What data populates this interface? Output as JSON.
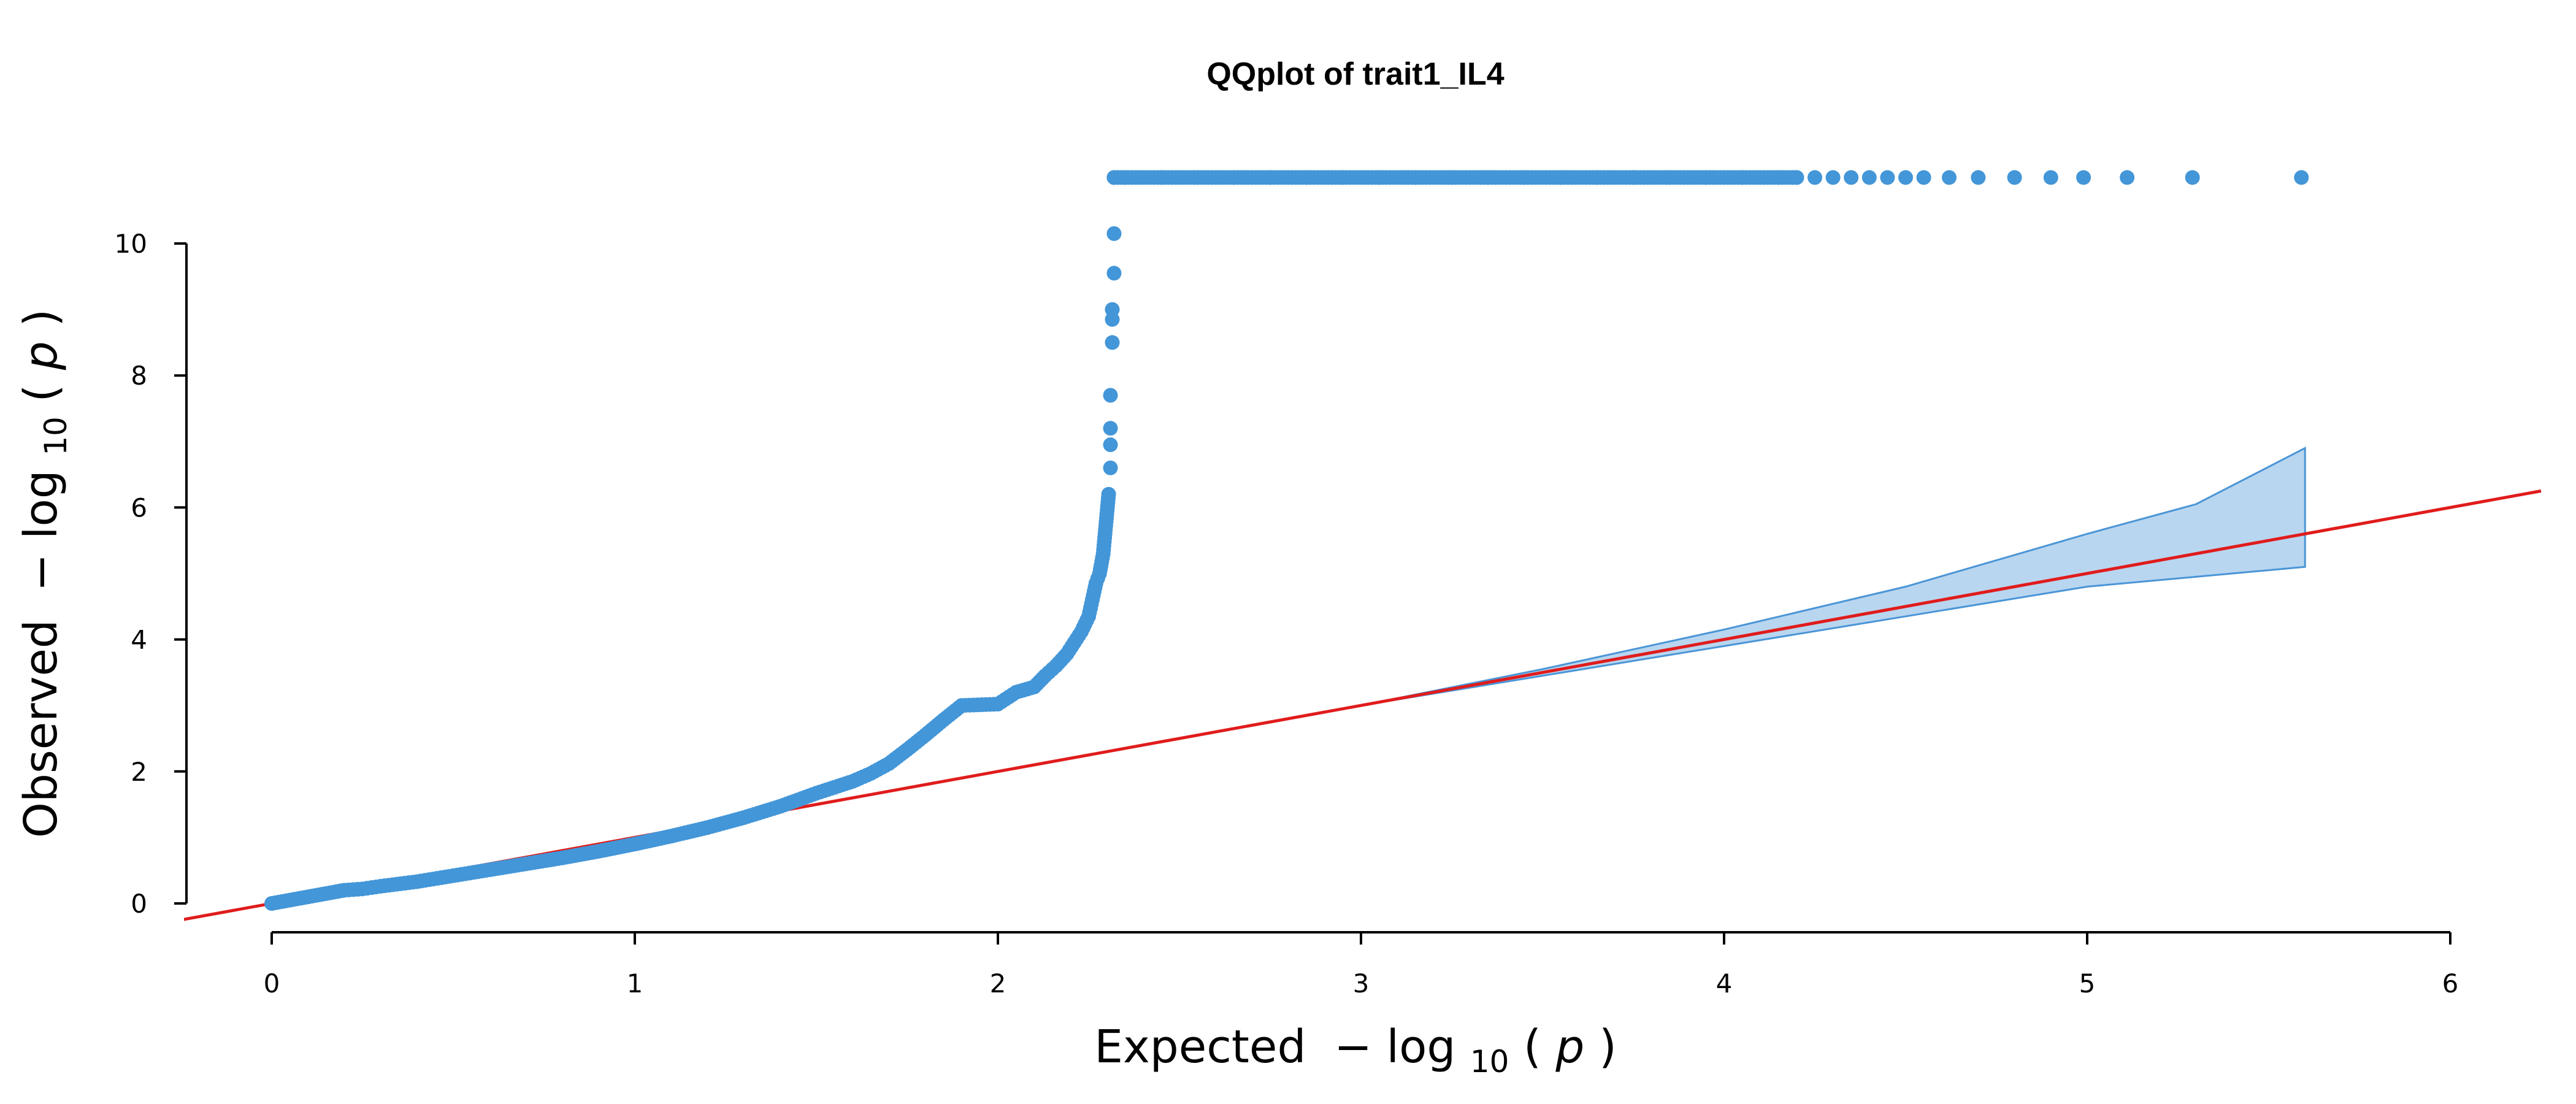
{
  "chart_data": {
    "type": "scatter",
    "title": "QQplot of trait1_IL4",
    "xlabel": {
      "prefix": "Expected",
      "fn": "log",
      "sub": "10",
      "arg": "p"
    },
    "ylabel": {
      "prefix": "Observed",
      "fn": "log",
      "sub": "10",
      "arg": "p"
    },
    "xlim": [
      0,
      6
    ],
    "ylim": [
      0,
      10
    ],
    "xticks": [
      "0",
      "1",
      "2",
      "3",
      "4",
      "5",
      "6"
    ],
    "yticks": [
      "0",
      "2",
      "4",
      "6",
      "8",
      "10"
    ],
    "grid": false,
    "colors": {
      "points": "#4396d8",
      "reference_line": "#e01c1c",
      "band_fill": "#b9d6f0",
      "band_edge": "#4a95d6"
    },
    "reference_line": {
      "slope": 1,
      "intercept": 0
    },
    "confidence_band": {
      "x": [
        1.5,
        2.0,
        2.5,
        3.0,
        3.5,
        4.0,
        4.5,
        5.0,
        5.3,
        5.6
      ],
      "upper": [
        1.5,
        2.0,
        2.5,
        3.0,
        3.55,
        4.15,
        4.8,
        5.6,
        6.05,
        6.9
      ],
      "lower": [
        1.5,
        2.0,
        2.5,
        3.0,
        3.45,
        3.9,
        4.35,
        4.8,
        4.95,
        5.1
      ]
    },
    "series": [
      {
        "x": [
          0,
          0.05,
          0.1,
          0.15,
          0.2,
          0.25,
          0.3,
          0.4,
          0.5,
          0.6,
          0.7,
          0.8,
          0.9,
          1.0,
          1.1,
          1.2,
          1.3,
          1.4,
          1.5,
          1.6,
          1.65,
          1.7,
          1.75,
          1.8,
          1.85,
          1.9,
          2.0,
          2.05,
          2.1,
          2.13,
          2.16,
          2.19,
          2.21,
          2.23,
          2.25,
          2.26,
          2.27,
          2.28,
          2.29,
          2.295,
          2.3,
          2.305,
          2.31,
          2.31,
          2.31,
          2.31,
          2.315,
          2.315,
          2.315,
          2.32,
          2.32,
          2.32,
          2.32
        ],
        "y": [
          0,
          0.05,
          0.1,
          0.15,
          0.2,
          0.22,
          0.26,
          0.33,
          0.42,
          0.51,
          0.6,
          0.69,
          0.79,
          0.9,
          1.02,
          1.15,
          1.3,
          1.47,
          1.67,
          1.85,
          1.97,
          2.12,
          2.33,
          2.55,
          2.78,
          3.0,
          3.02,
          3.2,
          3.28,
          3.45,
          3.6,
          3.78,
          3.95,
          4.12,
          4.35,
          4.6,
          4.85,
          5.0,
          5.3,
          5.6,
          5.9,
          6.2,
          6.6,
          6.95,
          7.2,
          7.7,
          8.5,
          8.85,
          9.0,
          9.55,
          10.15,
          11.0,
          11.0
        ]
      },
      {
        "x": [
          2.35,
          2.45,
          2.55,
          2.65,
          2.75,
          2.85,
          2.95,
          3.05,
          3.15,
          3.25,
          3.35,
          3.45,
          3.55,
          3.65,
          3.75,
          3.85,
          3.95,
          4.05,
          4.15,
          4.2,
          4.25,
          4.3,
          4.35,
          4.4,
          4.45,
          4.5,
          4.55,
          4.62,
          4.7,
          4.8,
          4.9,
          4.99,
          5.11,
          5.29,
          5.59
        ],
        "y": [
          11,
          11,
          11,
          11,
          11,
          11,
          11,
          11,
          11,
          11,
          11,
          11,
          11,
          11,
          11,
          11,
          11,
          11,
          11,
          11,
          11,
          11,
          11,
          11,
          11,
          11,
          11,
          11,
          11,
          11,
          11,
          11,
          11,
          11,
          11
        ]
      }
    ]
  }
}
